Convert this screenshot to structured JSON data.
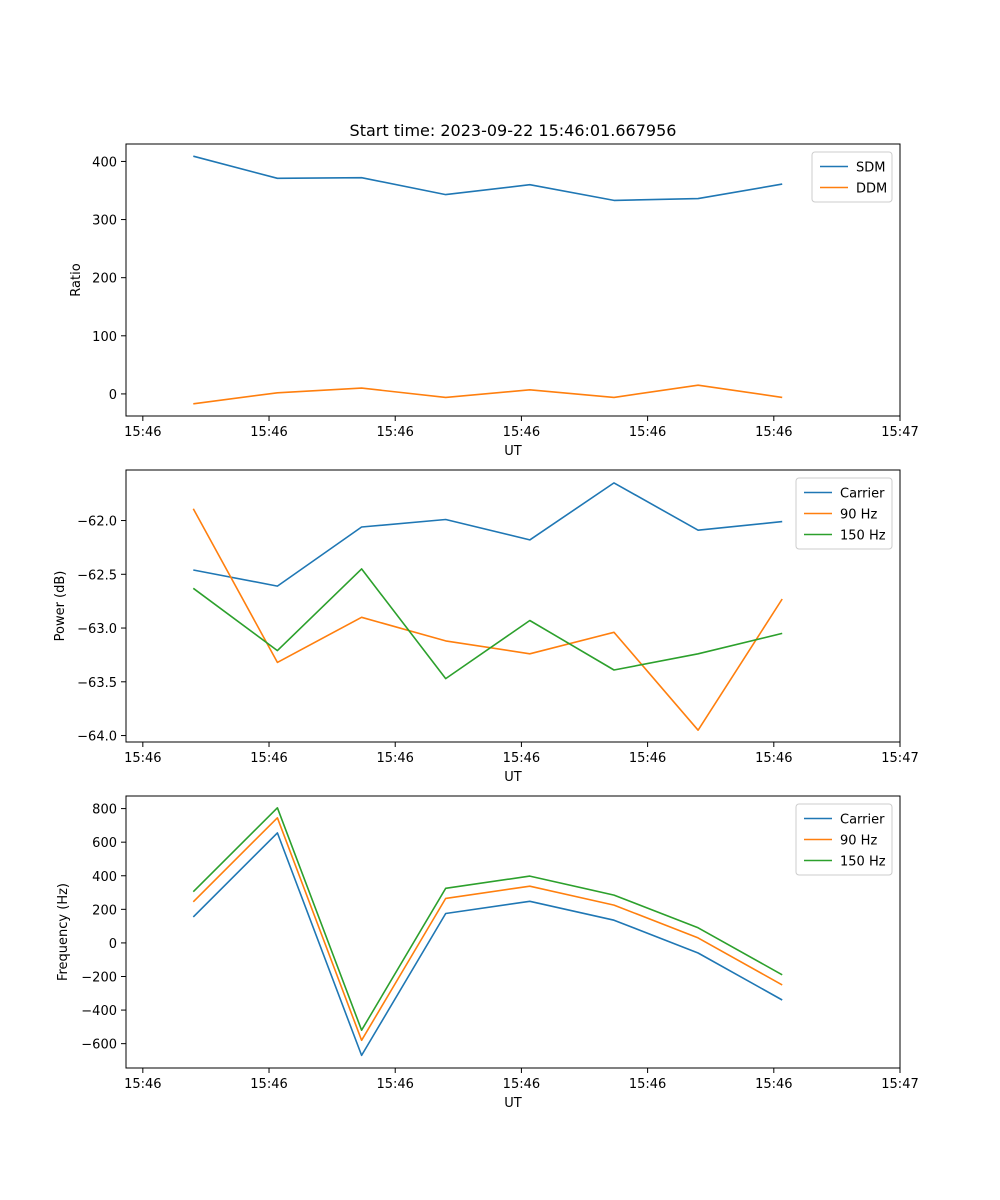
{
  "chart_data": [
    {
      "type": "line",
      "title": "Start time: 2023-09-22 15:46:01.667956",
      "xlabel": "UT",
      "ylabel": "Ratio",
      "x": [
        1,
        2,
        3,
        4,
        5,
        6,
        7,
        8
      ],
      "xlim": [
        0.2,
        9.4
      ],
      "xticks": [
        0.4,
        1.9,
        3.4,
        4.9,
        6.4,
        7.9,
        9.4
      ],
      "xtick_labels": [
        "15:46",
        "15:46",
        "15:46",
        "15:46",
        "15:46",
        "15:46",
        "15:47"
      ],
      "ylim": [
        -38,
        430
      ],
      "yticks": [
        0,
        100,
        200,
        300,
        400
      ],
      "ytick_labels": [
        "0",
        "100",
        "200",
        "300",
        "400"
      ],
      "legend": "top-right",
      "series": [
        {
          "name": "SDM",
          "color": "#1f77b4",
          "values": [
            409,
            371,
            372,
            343,
            360,
            333,
            336,
            361
          ]
        },
        {
          "name": "DDM",
          "color": "#ff7f0e",
          "values": [
            -17,
            2,
            10,
            -6,
            7,
            -6,
            15,
            -6
          ]
        }
      ]
    },
    {
      "type": "line",
      "title": "",
      "xlabel": "UT",
      "ylabel": "Power (dB)",
      "x": [
        1,
        2,
        3,
        4,
        5,
        6,
        7,
        8
      ],
      "xlim": [
        0.2,
        9.4
      ],
      "xticks": [
        0.4,
        1.9,
        3.4,
        4.9,
        6.4,
        7.9,
        9.4
      ],
      "xtick_labels": [
        "15:46",
        "15:46",
        "15:46",
        "15:46",
        "15:46",
        "15:46",
        "15:47"
      ],
      "ylim": [
        -64.06,
        -61.53
      ],
      "yticks": [
        -64.0,
        -63.5,
        -63.0,
        -62.5,
        -62.0
      ],
      "ytick_labels": [
        "−64.0",
        "−63.5",
        "−63.0",
        "−62.5",
        "−62.0"
      ],
      "legend": "top-right",
      "series": [
        {
          "name": "Carrier",
          "color": "#1f77b4",
          "values": [
            -62.46,
            -62.61,
            -62.06,
            -61.99,
            -62.18,
            -61.65,
            -62.09,
            -62.01
          ]
        },
        {
          "name": "90 Hz",
          "color": "#ff7f0e",
          "values": [
            -61.89,
            -63.32,
            -62.9,
            -63.12,
            -63.24,
            -63.04,
            -63.95,
            -62.73
          ]
        },
        {
          "name": "150 Hz",
          "color": "#2ca02c",
          "values": [
            -62.63,
            -63.21,
            -62.45,
            -63.47,
            -62.93,
            -63.39,
            -63.24,
            -63.05
          ]
        }
      ]
    },
    {
      "type": "line",
      "title": "",
      "xlabel": "UT",
      "ylabel": "Frequency (Hz)",
      "x": [
        1,
        2,
        3,
        4,
        5,
        6,
        7,
        8
      ],
      "xlim": [
        0.2,
        9.4
      ],
      "xticks": [
        0.4,
        1.9,
        3.4,
        4.9,
        6.4,
        7.9,
        9.4
      ],
      "xtick_labels": [
        "15:46",
        "15:46",
        "15:46",
        "15:46",
        "15:46",
        "15:46",
        "15:47"
      ],
      "ylim": [
        -745,
        875
      ],
      "yticks": [
        -600,
        -400,
        -200,
        0,
        200,
        400,
        600,
        800
      ],
      "ytick_labels": [
        "−600",
        "−400",
        "−200",
        "0",
        "200",
        "400",
        "600",
        "800"
      ],
      "legend": "top-right",
      "series": [
        {
          "name": "Carrier",
          "color": "#1f77b4",
          "values": [
            155,
            655,
            -670,
            175,
            248,
            135,
            -60,
            -340
          ]
        },
        {
          "name": "90 Hz",
          "color": "#ff7f0e",
          "values": [
            245,
            745,
            -580,
            265,
            338,
            225,
            30,
            -250
          ]
        },
        {
          "name": "150 Hz",
          "color": "#2ca02c",
          "values": [
            305,
            805,
            -520,
            325,
            398,
            285,
            90,
            -190
          ]
        }
      ]
    }
  ]
}
